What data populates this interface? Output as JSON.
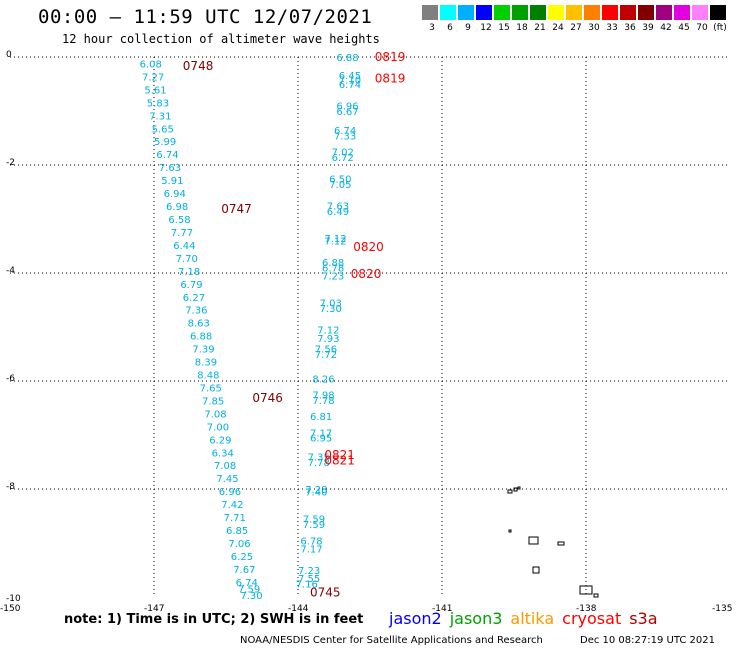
{
  "header": {
    "title": "00:00 – 11:59 UTC 12/07/2021",
    "subtitle": "12 hour collection of altimeter wave heights"
  },
  "colorbar": {
    "colors": [
      "#808080",
      "#00ffff",
      "#00b0ff",
      "#0000ff",
      "#00d000",
      "#00a000",
      "#008000",
      "#ffff00",
      "#ffc000",
      "#ff8000",
      "#ff0000",
      "#c00000",
      "#800000",
      "#a00080",
      "#e000e0",
      "#ff80ff",
      "#000000"
    ],
    "labels": [
      "3",
      "6",
      "9",
      "12",
      "15",
      "18",
      "21",
      "24",
      "27",
      "30",
      "33",
      "36",
      "39",
      "42",
      "45",
      "70",
      "(ft)"
    ]
  },
  "chart_data": {
    "type": "scatter",
    "title": "00:00 – 11:59 UTC 12/07/2021",
    "subtitle": "12 hour collection of altimeter wave heights",
    "xlim": [
      -150,
      -135
    ],
    "ylim": [
      -10,
      0
    ],
    "x_ticks": [
      "-150",
      "-147",
      "-144",
      "-141",
      "-138",
      "-135"
    ],
    "y_ticks": [
      "0",
      "-2",
      "-4",
      "-6",
      "-8",
      "-10"
    ],
    "track_a_color": "#00b0e0",
    "track_b_color": "#00b0e0",
    "time_color_a": "#800000",
    "time_color_b": "#ff0000",
    "track_a": {
      "values": [
        "6.08",
        "7.27",
        "5.61",
        "5.83",
        "7.31",
        "5.65",
        "5.99",
        "6.74",
        "7.63",
        "5.91",
        "6.94",
        "6.98",
        "6.58",
        "7.77",
        "6.44",
        "7.70",
        "7.18",
        "6.79",
        "6.27",
        "7.36",
        "8.63",
        "6.88",
        "7.39",
        "8.39",
        "8.48",
        "7.65",
        "7.85",
        "7.08",
        "7.00",
        "6.29",
        "6.34",
        "7.08",
        "7.45",
        "6.96",
        "7.42",
        "7.71",
        "6.85",
        "7.06",
        "6.25",
        "7.67",
        "6.74",
        "7.59",
        "7.30"
      ],
      "lon": [
        -147.3,
        -147.25,
        -147.2,
        -147.15,
        -147.1,
        -147.05,
        -147.0,
        -146.95,
        -146.9,
        -146.85,
        -146.8,
        -146.75,
        -146.7,
        -146.65,
        -146.6,
        -146.55,
        -146.5,
        -146.45,
        -146.4,
        -146.35,
        -146.3,
        -146.25,
        -146.2,
        -146.15,
        -146.1,
        -146.05,
        -146.0,
        -145.95,
        -145.9,
        -145.85,
        -145.8,
        -145.75,
        -145.7,
        -145.65,
        -145.6,
        -145.55,
        -145.5,
        -145.45,
        -145.4,
        -145.35,
        -145.3,
        -145.25,
        -145.2
      ],
      "lat": [
        -0.12,
        -0.36,
        -0.6,
        -0.84,
        -1.08,
        -1.32,
        -1.56,
        -1.8,
        -2.04,
        -2.28,
        -2.52,
        -2.76,
        -3.0,
        -3.24,
        -3.48,
        -3.72,
        -3.96,
        -4.2,
        -4.44,
        -4.68,
        -4.92,
        -5.16,
        -5.4,
        -5.64,
        -5.88,
        -6.12,
        -6.36,
        -6.6,
        -6.84,
        -7.08,
        -7.32,
        -7.56,
        -7.8,
        -8.04,
        -8.28,
        -8.52,
        -8.76,
        -9.0,
        -9.24,
        -9.48,
        -9.72,
        -9.84,
        -9.96
      ]
    },
    "track_b": {
      "values": [
        "6.88",
        "6.45",
        "7.10",
        "6.74",
        "6.96",
        "6.67",
        "6.74",
        "7.33",
        "7.02",
        "6.72",
        "6.50",
        "7.05",
        "7.63",
        "6.49",
        "7.12",
        "7.12",
        "6.88",
        "6.78",
        "7.23",
        "7.03",
        "7.30",
        "7.12",
        "7.93",
        "7.56",
        "7.72",
        "8.26",
        "7.98",
        "7.78",
        "6.81",
        "7.17",
        "6.95",
        "7.35",
        "7.78",
        "7.28",
        "7.40",
        "7.59",
        "7.59",
        "6.78",
        "7.17",
        "7.23",
        "7.55",
        "7.16"
      ],
      "lon": [
        -143.2,
        -143.15,
        -143.15,
        -143.15,
        -143.2,
        -143.2,
        -143.25,
        -143.25,
        -143.3,
        -143.3,
        -143.35,
        -143.35,
        -143.4,
        -143.4,
        -143.45,
        -143.45,
        -143.5,
        -143.5,
        -143.5,
        -143.55,
        -143.55,
        -143.6,
        -143.6,
        -143.65,
        -143.65,
        -143.7,
        -143.7,
        -143.7,
        -143.75,
        -143.75,
        -143.75,
        -143.8,
        -143.8,
        -143.85,
        -143.85,
        -143.9,
        -143.9,
        -143.95,
        -143.95,
        -144.0,
        -144.0,
        -144.05
      ],
      "lat": [
        0.0,
        -0.33,
        -0.42,
        -0.5,
        -0.9,
        -1.0,
        -1.35,
        -1.45,
        -1.75,
        -1.85,
        -2.25,
        -2.35,
        -2.75,
        -2.85,
        -3.35,
        -3.4,
        -3.8,
        -3.9,
        -4.05,
        -4.55,
        -4.65,
        -5.05,
        -5.2,
        -5.4,
        -5.5,
        -5.95,
        -6.25,
        -6.35,
        -6.65,
        -6.95,
        -7.05,
        -7.4,
        -7.5,
        -8.0,
        -8.05,
        -8.55,
        -8.65,
        -8.95,
        -9.1,
        -9.5,
        -9.65,
        -9.75
      ]
    },
    "time_labels": [
      {
        "text": "0748",
        "lon": -146.4,
        "lat": -0.15,
        "color": "dark"
      },
      {
        "text": "0747",
        "lon": -145.6,
        "lat": -2.8,
        "color": "dark"
      },
      {
        "text": "0746",
        "lon": -144.95,
        "lat": -6.3,
        "color": "dark"
      },
      {
        "text": "0745",
        "lon": -143.75,
        "lat": -9.9,
        "color": "dark"
      },
      {
        "text": "0819",
        "lon": -142.4,
        "lat": 0.02,
        "color": "red"
      },
      {
        "text": "0819",
        "lon": -142.4,
        "lat": -0.38,
        "color": "red"
      },
      {
        "text": "0820",
        "lon": -142.85,
        "lat": -3.5,
        "color": "red"
      },
      {
        "text": "0820",
        "lon": -142.9,
        "lat": -4.0,
        "color": "red"
      },
      {
        "text": "0821",
        "lon": -143.45,
        "lat": -7.35,
        "color": "red"
      },
      {
        "text": "0821",
        "lon": -143.45,
        "lat": -7.45,
        "color": "red"
      }
    ]
  },
  "footer": {
    "note": "note:  1) Time is in UTC; 2) SWH is in feet",
    "legend": [
      {
        "label": "jason2",
        "color": "#0000ff"
      },
      {
        "label": "jason3",
        "color": "#00a000"
      },
      {
        "label": "altika",
        "color": "#ff9900"
      },
      {
        "label": "cryosat",
        "color": "#ff0000"
      },
      {
        "label": "s3a",
        "color": "#b00000"
      }
    ],
    "credit": "NOAA/NESDIS Center for Satellite Applications and Research",
    "date": "Dec 10 08:27:19 UTC 2021"
  }
}
